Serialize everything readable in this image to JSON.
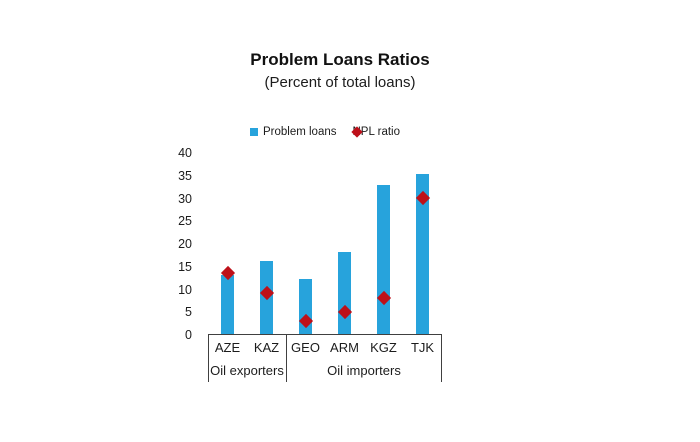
{
  "chart_data": {
    "type": "bar",
    "title": "Problem Loans Ratios",
    "subtitle": "(Percent of total loans)",
    "categories": [
      "AZE",
      "KAZ",
      "GEO",
      "ARM",
      "KGZ",
      "TJK"
    ],
    "groups": [
      {
        "label": "Oil exporters",
        "span": 2
      },
      {
        "label": "Oil importers",
        "span": 4
      }
    ],
    "series": [
      {
        "name": "Problem loans",
        "type": "bar",
        "marker": "square",
        "color": "#27A3DC",
        "values": [
          13,
          16,
          12.2,
          18,
          32.8,
          35.2
        ]
      },
      {
        "name": "NPL ratio",
        "type": "point",
        "marker": "diamond",
        "color": "#BE1019",
        "values": [
          13.5,
          9,
          2.8,
          4.8,
          8,
          30
        ]
      }
    ],
    "xlabel": "",
    "ylabel": "",
    "ylim": [
      0,
      40
    ],
    "yticks": [
      0,
      5,
      10,
      15,
      20,
      25,
      30,
      35,
      40
    ],
    "grid": false,
    "legend_position": "top-center",
    "axis_color": "#404040",
    "background_color": "#ffffff"
  }
}
